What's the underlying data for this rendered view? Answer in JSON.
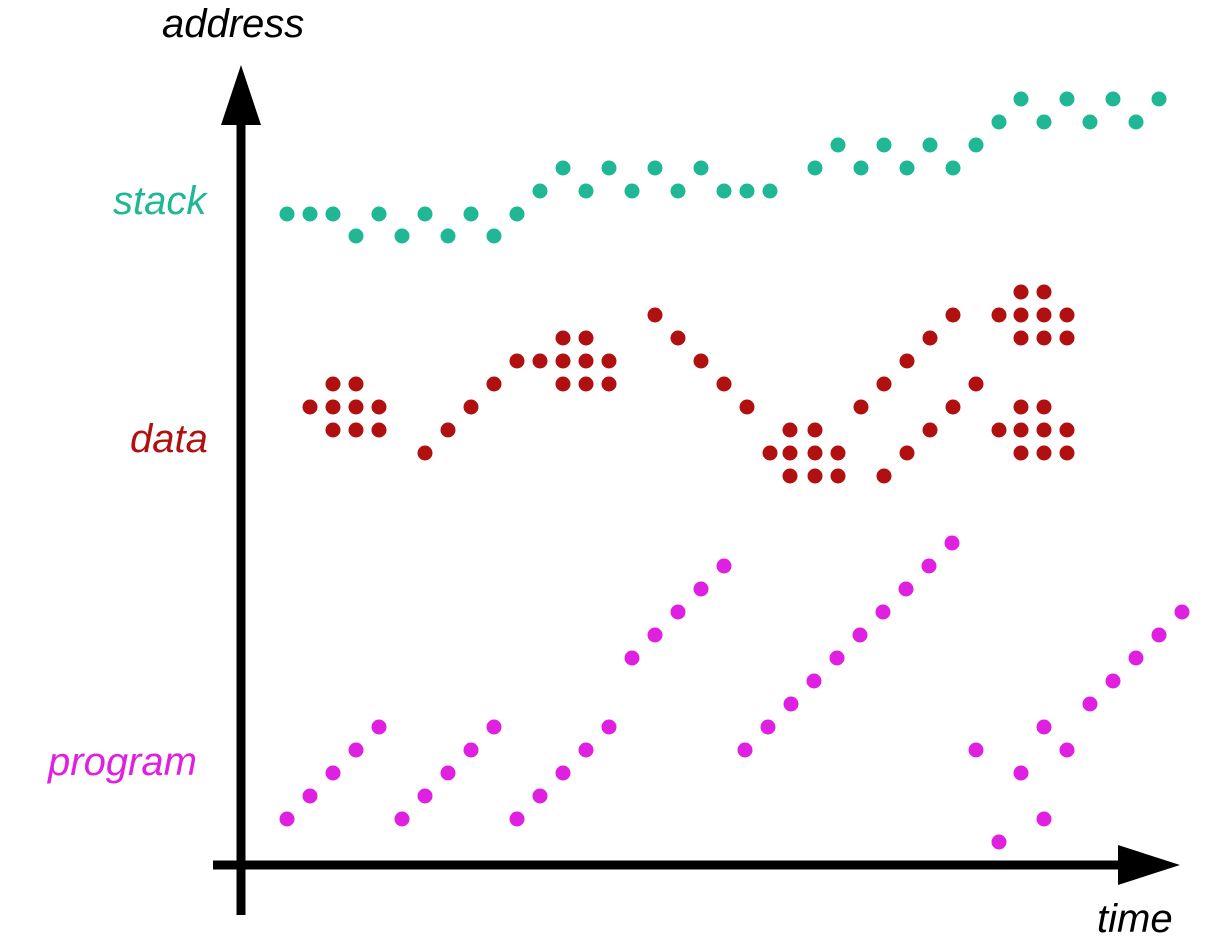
{
  "labels": {
    "y_axis": "address",
    "x_axis": "time",
    "stack": "stack",
    "data": "data",
    "program": "program"
  },
  "colors": {
    "axis": "#000000",
    "stack": "#20b894",
    "data": "#b01010",
    "program": "#e020e0"
  }
}
